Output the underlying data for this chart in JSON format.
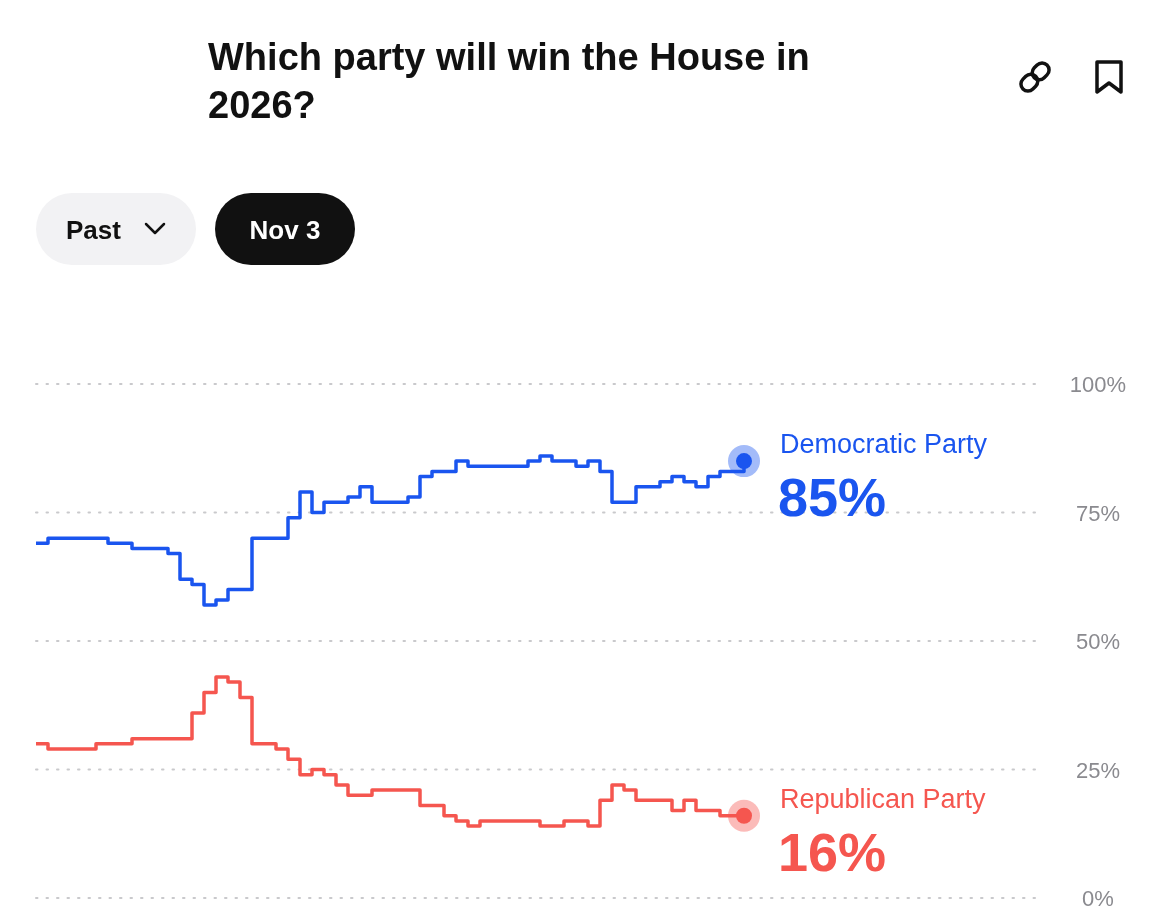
{
  "chart_data": {
    "type": "step",
    "title": "Which party will win the House in 2026?",
    "annotations": [
      "Past",
      "Nov 3"
    ],
    "categories": [
      null,
      null,
      null,
      null,
      null,
      null,
      null,
      null,
      null,
      null,
      null,
      null,
      null,
      null,
      null,
      null,
      null,
      null,
      null,
      null,
      null,
      null,
      null,
      null,
      null,
      null,
      null,
      null,
      null,
      null,
      null,
      null,
      null,
      null,
      null,
      null,
      null,
      null,
      null,
      null,
      null,
      null,
      null,
      null,
      null,
      null,
      null,
      null,
      null,
      null,
      null,
      null,
      null,
      null,
      null,
      null,
      null,
      null,
      null,
      null
    ],
    "series": [
      {
        "name": "Democratic Party",
        "color": "#1a55ef",
        "values": [
          69,
          70,
          70,
          70,
          70,
          70,
          69,
          69,
          68,
          68,
          68,
          67,
          62,
          61,
          57,
          58,
          60,
          60,
          70,
          70,
          70,
          74,
          79,
          75,
          77,
          77,
          78,
          80,
          77,
          77,
          77,
          78,
          82,
          83,
          83,
          85,
          84,
          84,
          84,
          84,
          84,
          85,
          86,
          85,
          85,
          84,
          85,
          83,
          77,
          77,
          80,
          80,
          81,
          82,
          81,
          80,
          82,
          83,
          83,
          85
        ],
        "value_labels": [
          null,
          null,
          null,
          null,
          null,
          null,
          null,
          null,
          null,
          null,
          null,
          null,
          null,
          null,
          null,
          null,
          null,
          null,
          null,
          null,
          null,
          null,
          null,
          null,
          null,
          null,
          null,
          null,
          null,
          null,
          null,
          null,
          null,
          null,
          null,
          null,
          null,
          null,
          null,
          null,
          null,
          null,
          null,
          null,
          null,
          null,
          null,
          null,
          null,
          null,
          null,
          null,
          null,
          null,
          null,
          null,
          null,
          null,
          null,
          "85%"
        ]
      },
      {
        "name": "Republican Party",
        "color": "#f5564f",
        "values": [
          30,
          29,
          29,
          29,
          29,
          30,
          30,
          30,
          31,
          31,
          31,
          31,
          31,
          36,
          40,
          43,
          42,
          39,
          30,
          30,
          29,
          27,
          24,
          25,
          24,
          22,
          20,
          20,
          21,
          21,
          21,
          21,
          18,
          18,
          16,
          15,
          14,
          15,
          15,
          15,
          15,
          15,
          14,
          14,
          15,
          15,
          14,
          19,
          22,
          21,
          19,
          19,
          19,
          17,
          19,
          17,
          17,
          16,
          16,
          16
        ],
        "value_labels": [
          null,
          null,
          null,
          null,
          null,
          null,
          null,
          null,
          null,
          null,
          null,
          null,
          null,
          null,
          null,
          null,
          null,
          null,
          null,
          null,
          null,
          null,
          null,
          null,
          null,
          null,
          null,
          null,
          null,
          null,
          null,
          null,
          null,
          null,
          null,
          null,
          null,
          null,
          null,
          null,
          null,
          null,
          null,
          null,
          null,
          null,
          null,
          null,
          null,
          null,
          null,
          null,
          null,
          null,
          null,
          null,
          null,
          null,
          null,
          "16%"
        ]
      }
    ],
    "ylim": [
      0,
      100
    ],
    "yticks": [
      {
        "value": 0,
        "label": "0%"
      },
      {
        "value": 25,
        "label": "25%"
      },
      {
        "value": 50,
        "label": "50%"
      },
      {
        "value": 75,
        "label": "75%"
      },
      {
        "value": 100,
        "label": "100%"
      }
    ],
    "grid": "y"
  }
}
